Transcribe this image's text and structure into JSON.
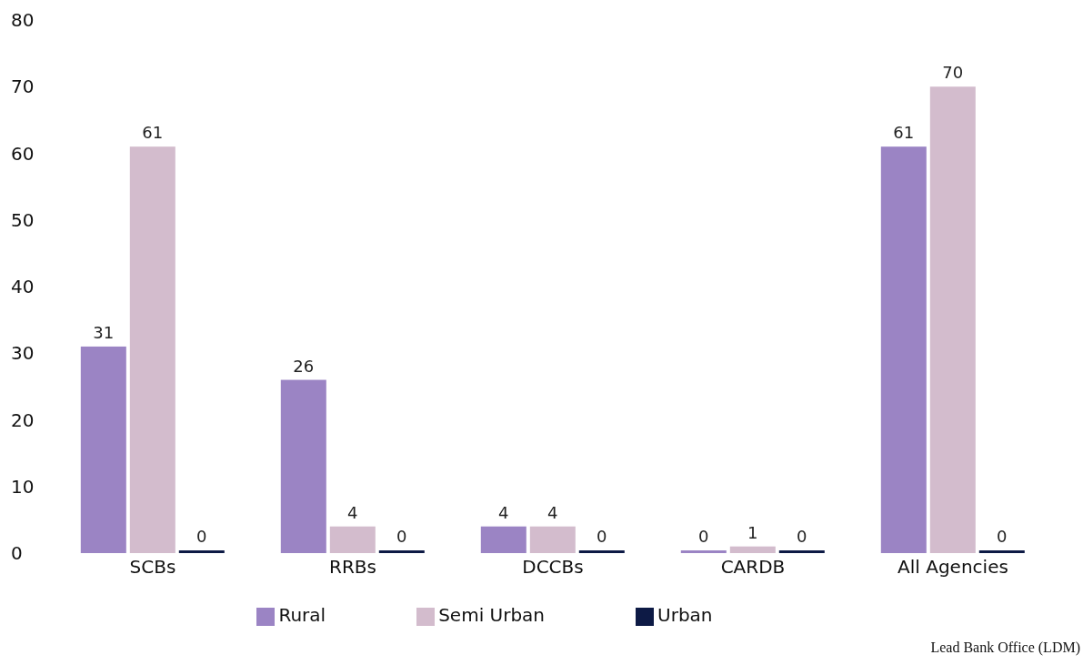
{
  "chart_data": {
    "type": "bar",
    "categories": [
      "SCBs",
      "RRBs",
      "DCCBs",
      "CARDB",
      "All Agencies"
    ],
    "series": [
      {
        "name": "Rural",
        "color": "#9b84c4",
        "values": [
          31,
          26,
          4,
          0,
          61
        ]
      },
      {
        "name": "Semi Urban",
        "color": "#d3bccd",
        "values": [
          61,
          4,
          4,
          1,
          70
        ]
      },
      {
        "name": "Urban",
        "color": "#0d1a45",
        "values": [
          0,
          0,
          0,
          0,
          0
        ]
      }
    ],
    "ylim": [
      0,
      80
    ],
    "yticks": [
      0,
      10,
      20,
      30,
      40,
      50,
      60,
      70,
      80
    ],
    "grid": false,
    "legend": "bottom",
    "data_labels": true,
    "annotations": [
      "Lead Bank Office (LDM)"
    ]
  }
}
